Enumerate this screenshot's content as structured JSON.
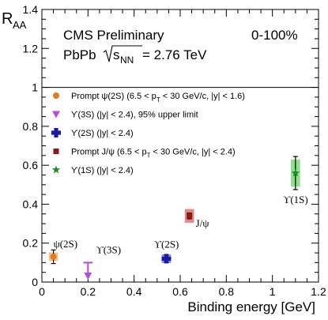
{
  "chart_data": {
    "type": "scatter",
    "xlabel": "Binding energy [GeV]",
    "ylabel": "R",
    "ylabel_sub": "AA",
    "xlim": [
      0,
      1.2
    ],
    "ylim": [
      0,
      1.4
    ],
    "xticks": [
      "0",
      "0.2",
      "0.4",
      "0.6",
      "0.8",
      "1",
      "1.2"
    ],
    "yticks": [
      "0",
      "0.2",
      "0.4",
      "0.6",
      "0.8",
      "1",
      "1.2",
      "1.4"
    ],
    "reference_line_y": 1.0,
    "header": {
      "experiment": "CMS Preliminary",
      "centrality": "0-100%",
      "system_prefix": "PbPb ",
      "sqrt_s": "s",
      "sqrt_sub": "NN",
      "energy": " = 2.76 TeV"
    },
    "series": [
      {
        "name": "Prompt ψ(2S) (6.5 < p",
        "name_sub": "T",
        "name_rest": " < 30 GeV/c, |y| < 1.6)",
        "marker": "circle",
        "color": "#e07b1f",
        "box_color": "#f5c48a",
        "x": 0.05,
        "y": 0.13,
        "err": 0.035,
        "box_half_w": 0.02,
        "box_half_h": 0.022,
        "annotation": "ψ(2S)"
      },
      {
        "name": "ϒ(3S) (|y| < 2.4), 95% upper limit",
        "marker": "triangle-down",
        "color": "#b44be3",
        "x": 0.2,
        "y": 0.1,
        "upper_limit": true,
        "annotation": "ϒ(3S)"
      },
      {
        "name": "ϒ(2S) (|y| < 2.4)",
        "marker": "cross",
        "color": "#1a1aa8",
        "box_color": "#8f8fe0",
        "x": 0.54,
        "y": 0.12,
        "err": 0.02,
        "box_half_w": 0.02,
        "box_half_h": 0.022,
        "annotation": "ϒ(2S)"
      },
      {
        "name": "Prompt J/ψ (6.5 < p",
        "name_sub": "T",
        "name_rest": " < 30 GeV/c, |y| < 2.4)",
        "marker": "square",
        "color": "#8b1a1a",
        "box_color": "#e68787",
        "x": 0.64,
        "y": 0.34,
        "err": 0.015,
        "box_half_w": 0.02,
        "box_half_h": 0.035,
        "annotation": "J/ψ"
      },
      {
        "name": "ϒ(1S) (|y| < 2.4)",
        "marker": "star",
        "color": "#1f8a2a",
        "box_color": "#8ee08e",
        "x": 1.1,
        "y": 0.56,
        "err": 0.085,
        "box_half_w": 0.02,
        "box_half_h": 0.07,
        "annotation": "ϒ(1S)"
      }
    ]
  }
}
